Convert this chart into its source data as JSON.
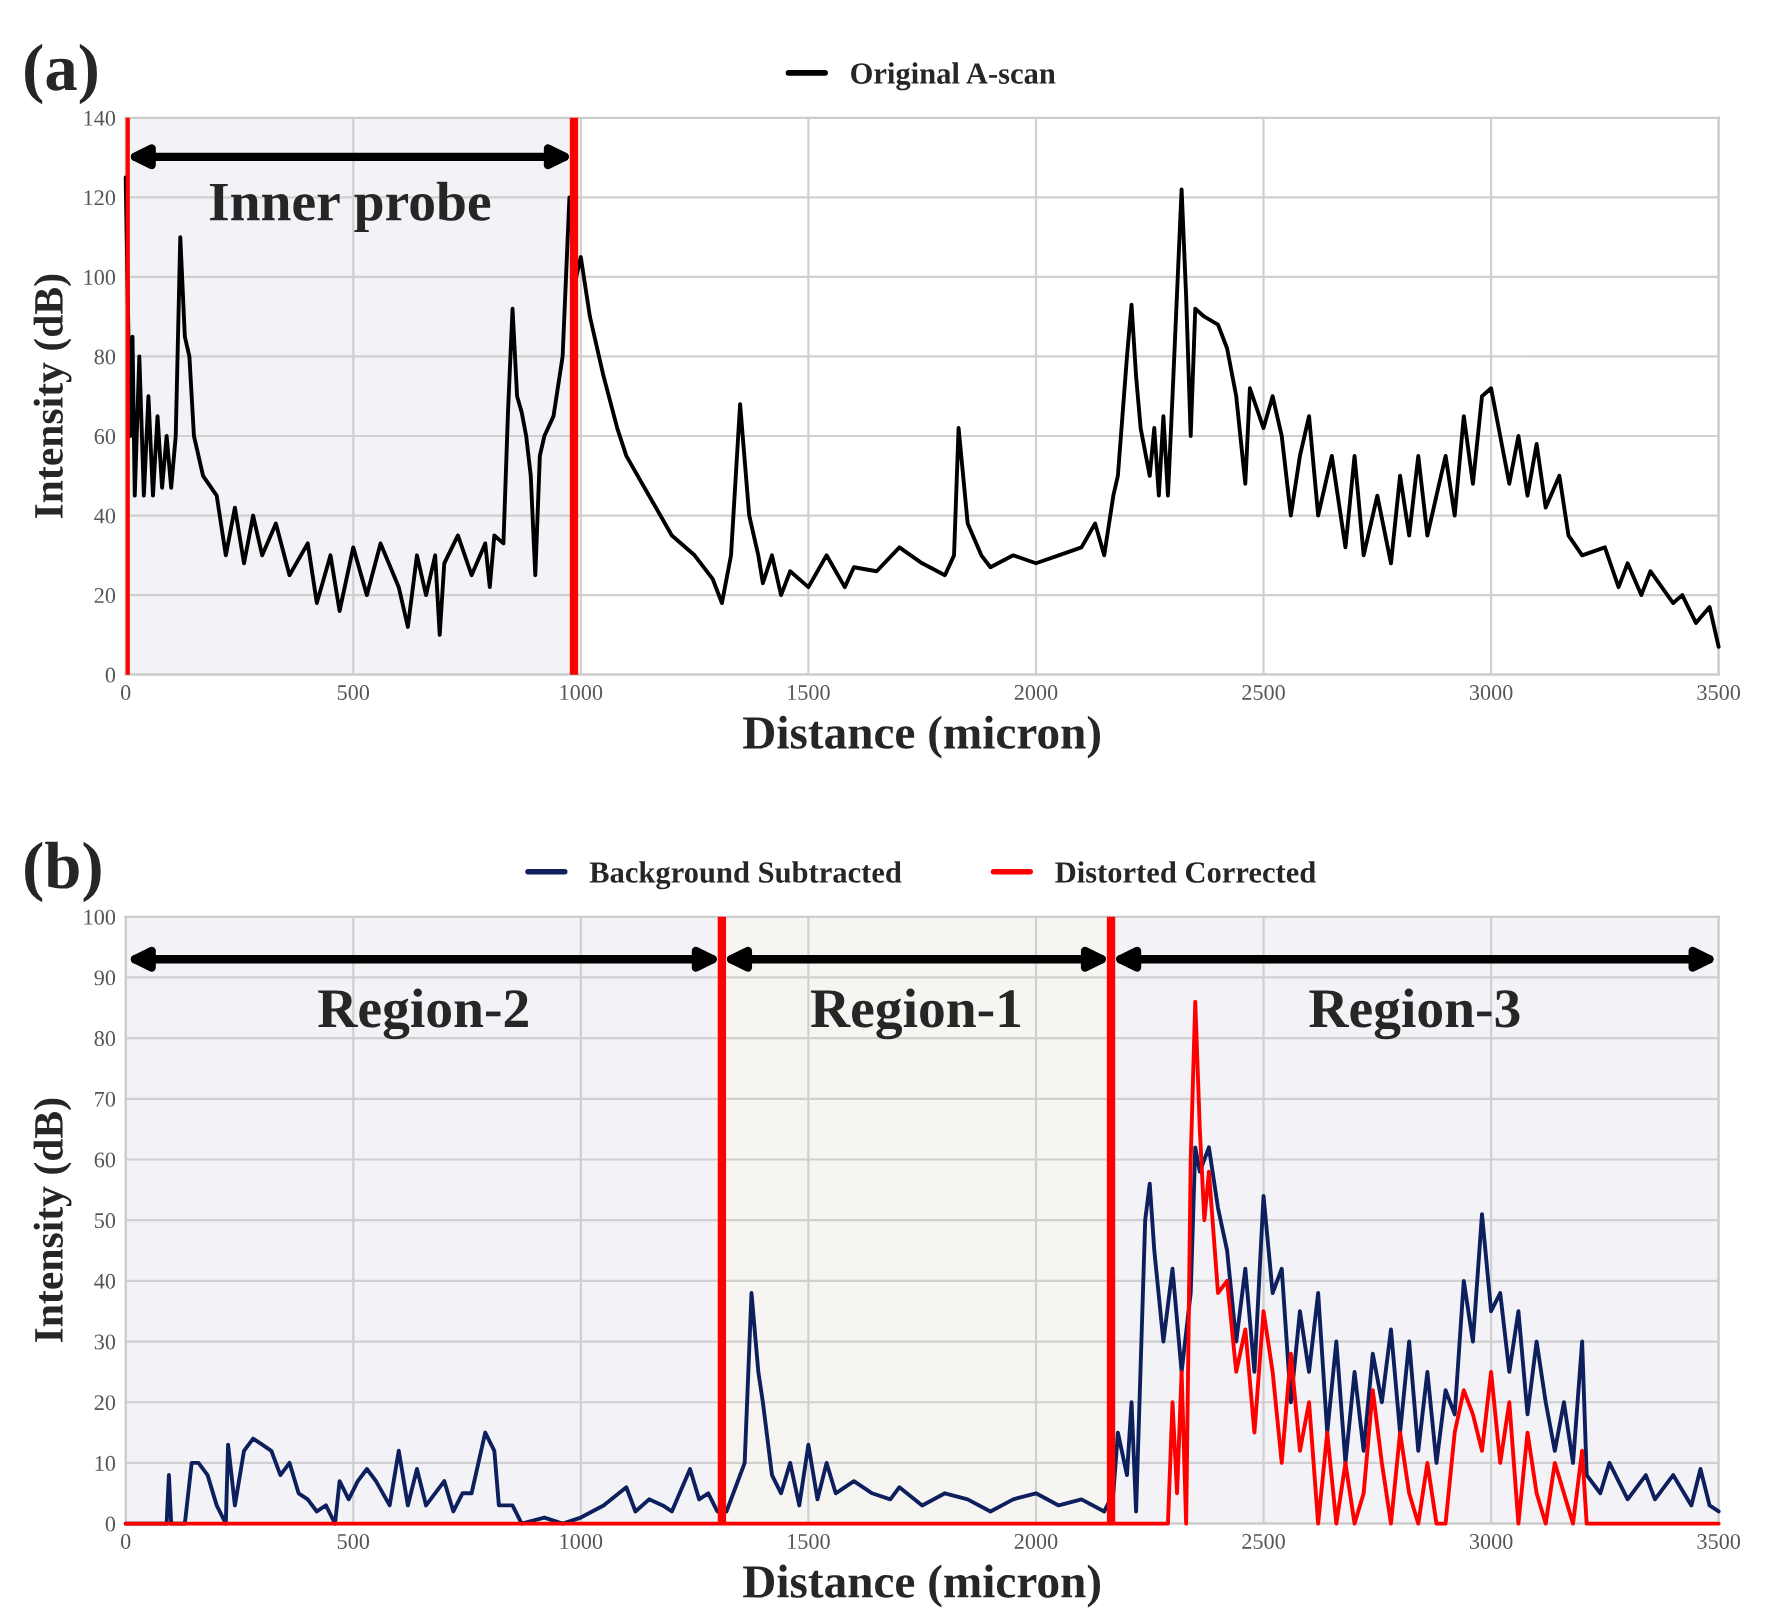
{
  "chart_data": [
    {
      "type": "line",
      "title": "(a)",
      "xlabel": "Distance (micron)",
      "ylabel": "Intensity (dB)",
      "legend": "top",
      "grid": true,
      "marker": "none",
      "line_style": "solid",
      "xlim": [
        0,
        3500
      ],
      "ylim": [
        0,
        140
      ],
      "xticks": [
        0,
        500,
        1000,
        1500,
        2000,
        2500,
        3000,
        3500
      ],
      "yticks": [
        0,
        20,
        40,
        60,
        80,
        100,
        120,
        140
      ],
      "ref_lines": [
        {
          "axis": "x",
          "value": 0,
          "color": "#ff0000"
        },
        {
          "axis": "x",
          "value": 985,
          "color": "#ff0000"
        }
      ],
      "bands": [
        {
          "axis": "x",
          "from": 0,
          "to": 985,
          "label": "Inner probe"
        }
      ],
      "series": [
        {
          "name": "Original A-scan",
          "color": "#000000",
          "x": [
            0,
            5,
            10,
            15,
            20,
            30,
            40,
            50,
            60,
            70,
            80,
            90,
            100,
            110,
            120,
            130,
            140,
            150,
            170,
            200,
            220,
            240,
            260,
            280,
            300,
            330,
            360,
            400,
            420,
            450,
            470,
            500,
            530,
            560,
            600,
            620,
            640,
            660,
            680,
            690,
            700,
            730,
            760,
            790,
            800,
            810,
            830,
            840,
            850,
            860,
            870,
            880,
            890,
            900,
            910,
            920,
            940,
            960,
            975,
            990,
            1000,
            1020,
            1050,
            1080,
            1100,
            1150,
            1200,
            1250,
            1290,
            1310,
            1330,
            1350,
            1370,
            1390,
            1400,
            1420,
            1440,
            1460,
            1500,
            1540,
            1580,
            1600,
            1650,
            1700,
            1750,
            1800,
            1820,
            1830,
            1850,
            1880,
            1900,
            1950,
            2000,
            2050,
            2100,
            2130,
            2150,
            2170,
            2180,
            2200,
            2210,
            2220,
            2230,
            2250,
            2260,
            2270,
            2280,
            2290,
            2300,
            2320,
            2330,
            2340,
            2350,
            2370,
            2400,
            2420,
            2440,
            2460,
            2470,
            2500,
            2520,
            2540,
            2560,
            2580,
            2600,
            2620,
            2650,
            2680,
            2700,
            2720,
            2750,
            2780,
            2800,
            2820,
            2840,
            2860,
            2880,
            2900,
            2920,
            2940,
            2960,
            2980,
            3000,
            3020,
            3040,
            3060,
            3080,
            3100,
            3120,
            3150,
            3170,
            3200,
            3250,
            3280,
            3300,
            3330,
            3350,
            3400,
            3420,
            3450,
            3480,
            3500
          ],
          "values": [
            125,
            null,
            60,
            85,
            45,
            80,
            45,
            70,
            45,
            65,
            47,
            60,
            47,
            60,
            110,
            85,
            80,
            60,
            50,
            45,
            30,
            42,
            28,
            40,
            30,
            38,
            25,
            33,
            18,
            30,
            16,
            32,
            20,
            33,
            22,
            12,
            30,
            20,
            30,
            10,
            28,
            35,
            25,
            33,
            22,
            35,
            33,
            66,
            92,
            70,
            66,
            60,
            50,
            25,
            55,
            60,
            65,
            80,
            120,
            100,
            105,
            90,
            75,
            62,
            55,
            45,
            35,
            30,
            24,
            18,
            30,
            68,
            40,
            30,
            23,
            30,
            20,
            26,
            22,
            30,
            22,
            27,
            26,
            32,
            28,
            25,
            30,
            62,
            38,
            30,
            27,
            30,
            28,
            30,
            32,
            38,
            30,
            45,
            50,
            80,
            93,
            75,
            62,
            50,
            62,
            45,
            65,
            45,
            70,
            122,
            95,
            60,
            92,
            90,
            88,
            82,
            70,
            48,
            72,
            62,
            70,
            60,
            40,
            55,
            65,
            40,
            55,
            32,
            55,
            30,
            45,
            28,
            50,
            35,
            55,
            35,
            45,
            55,
            40,
            65,
            48,
            70,
            72,
            60,
            48,
            60,
            45,
            58,
            42,
            50,
            35,
            30,
            32,
            22,
            28,
            20,
            26,
            18,
            20,
            13,
            17,
            7
          ]
        }
      ]
    },
    {
      "type": "line",
      "title": "(b)",
      "xlabel": "Distance (micron)",
      "ylabel": "Intensity (dB)",
      "legend": "top",
      "grid": true,
      "marker": "none",
      "line_style": "solid",
      "xlim": [
        0,
        3500
      ],
      "ylim": [
        0,
        100
      ],
      "xticks": [
        0,
        500,
        1000,
        1500,
        2000,
        2500,
        3000,
        3500
      ],
      "yticks": [
        0,
        10,
        20,
        30,
        40,
        50,
        60,
        70,
        80,
        90,
        100
      ],
      "ref_lines": [
        {
          "axis": "x",
          "value": 1310,
          "color": "#ff0000"
        },
        {
          "axis": "x",
          "value": 2165,
          "color": "#ff0000"
        }
      ],
      "bands": [
        {
          "axis": "x",
          "from": 0,
          "to": 1310,
          "label": "Region-2"
        },
        {
          "axis": "x",
          "from": 1310,
          "to": 2165,
          "label": "Region-1"
        },
        {
          "axis": "x",
          "from": 2165,
          "to": 3500,
          "label": "Region-3"
        }
      ],
      "series": [
        {
          "name": "Background Subtracted",
          "color": "#0d1f5c",
          "x": [
            0,
            90,
            95,
            100,
            130,
            145,
            160,
            180,
            200,
            220,
            225,
            240,
            260,
            280,
            300,
            320,
            340,
            360,
            380,
            400,
            420,
            440,
            460,
            470,
            490,
            510,
            530,
            550,
            580,
            600,
            620,
            640,
            660,
            700,
            720,
            740,
            760,
            790,
            810,
            820,
            850,
            870,
            920,
            960,
            1000,
            1050,
            1100,
            1120,
            1150,
            1180,
            1200,
            1240,
            1260,
            1280,
            1300,
            1320,
            1340,
            1360,
            1375,
            1390,
            1400,
            1420,
            1440,
            1460,
            1480,
            1500,
            1520,
            1540,
            1560,
            1600,
            1640,
            1680,
            1700,
            1750,
            1800,
            1850,
            1900,
            1950,
            2000,
            2050,
            2100,
            2150,
            2170,
            2180,
            2200,
            2210,
            2220,
            2240,
            2250,
            2260,
            2280,
            2300,
            2320,
            2340,
            2350,
            2360,
            2380,
            2400,
            2420,
            2440,
            2460,
            2480,
            2500,
            2520,
            2540,
            2560,
            2580,
            2600,
            2620,
            2640,
            2660,
            2680,
            2700,
            2720,
            2740,
            2760,
            2780,
            2800,
            2820,
            2840,
            2860,
            2880,
            2900,
            2920,
            2940,
            2960,
            2980,
            3000,
            3020,
            3040,
            3060,
            3080,
            3100,
            3120,
            3140,
            3160,
            3180,
            3200,
            3210,
            3240,
            3260,
            3300,
            3340,
            3360,
            3400,
            3440,
            3460,
            3480,
            3500
          ],
          "values": [
            0,
            0,
            8,
            0,
            0,
            10,
            10,
            8,
            3,
            0,
            13,
            3,
            12,
            14,
            13,
            12,
            8,
            10,
            5,
            4,
            2,
            3,
            0,
            7,
            4,
            7,
            9,
            7,
            3,
            12,
            3,
            9,
            3,
            7,
            2,
            5,
            5,
            15,
            12,
            3,
            3,
            0,
            1,
            0,
            1,
            3,
            6,
            2,
            4,
            3,
            2,
            9,
            4,
            5,
            2,
            2,
            6,
            10,
            38,
            25,
            20,
            8,
            5,
            10,
            3,
            13,
            4,
            10,
            5,
            7,
            5,
            4,
            6,
            3,
            5,
            4,
            2,
            4,
            5,
            3,
            4,
            2,
            5,
            15,
            8,
            20,
            2,
            50,
            56,
            45,
            30,
            42,
            25,
            38,
            62,
            58,
            62,
            52,
            45,
            30,
            42,
            25,
            54,
            38,
            42,
            20,
            35,
            25,
            38,
            15,
            30,
            10,
            25,
            12,
            28,
            20,
            32,
            15,
            30,
            12,
            25,
            10,
            22,
            18,
            40,
            30,
            51,
            35,
            38,
            25,
            35,
            18,
            30,
            20,
            12,
            20,
            10,
            30,
            8,
            5,
            10,
            4,
            8,
            4,
            8,
            3,
            9,
            3,
            2
          ]
        },
        {
          "name": "Distorted Corrected",
          "color": "#ff0000",
          "x": [
            0,
            2290,
            2300,
            2310,
            2320,
            2330,
            2340,
            2350,
            2360,
            2370,
            2380,
            2400,
            2420,
            2440,
            2460,
            2480,
            2500,
            2520,
            2540,
            2560,
            2580,
            2600,
            2620,
            2640,
            2660,
            2680,
            2700,
            2720,
            2740,
            2760,
            2780,
            2800,
            2820,
            2840,
            2860,
            2880,
            2900,
            2920,
            2940,
            2960,
            2980,
            3000,
            3020,
            3040,
            3060,
            3080,
            3100,
            3120,
            3140,
            3180,
            3200,
            3210,
            3500
          ],
          "values": [
            0,
            0,
            20,
            5,
            25,
            0,
            60,
            86,
            65,
            50,
            58,
            38,
            40,
            25,
            32,
            15,
            35,
            25,
            10,
            28,
            12,
            20,
            0,
            15,
            0,
            10,
            0,
            5,
            22,
            10,
            0,
            15,
            5,
            0,
            10,
            0,
            0,
            15,
            22,
            18,
            12,
            25,
            10,
            20,
            0,
            15,
            5,
            0,
            10,
            0,
            12,
            0,
            0
          ]
        }
      ]
    }
  ]
}
